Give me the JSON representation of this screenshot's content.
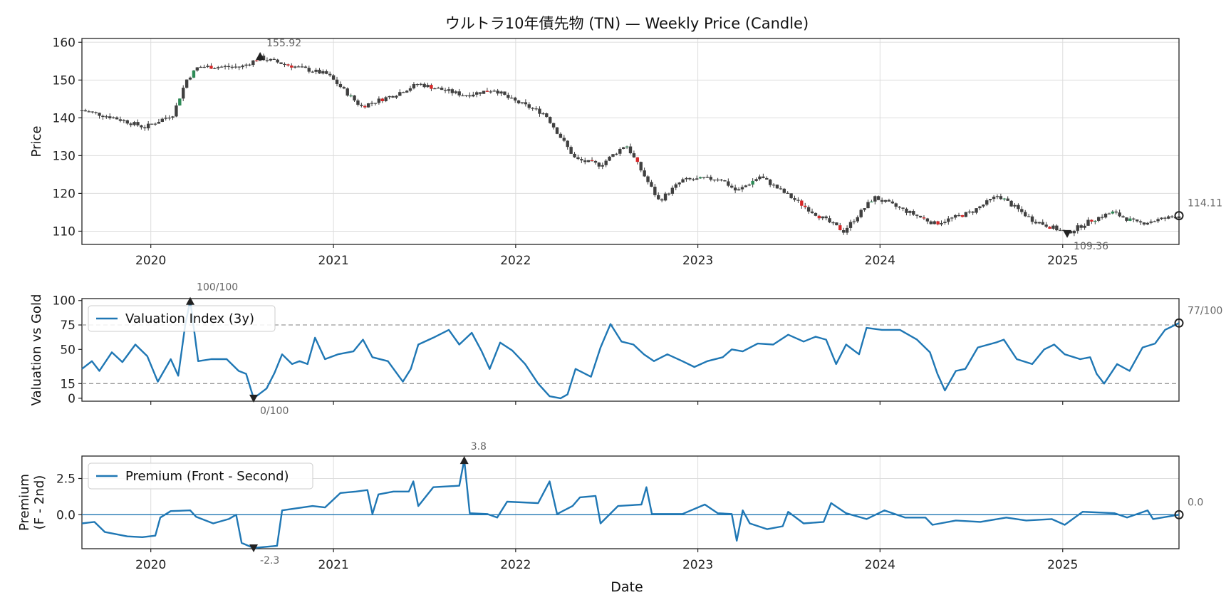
{
  "figure": {
    "title": "ウルトラ10年債先物 (TN) — Weekly Price (Candle)",
    "xlabel": "Date"
  },
  "colors": {
    "up": "#2e8b57",
    "down": "#d62728",
    "wick": "#3a3a3a",
    "line": "#1f77b4",
    "grid": "#dddddd",
    "ref": "#999999"
  },
  "chart_data": [
    {
      "type": "candlestick",
      "ylabel": "Price",
      "ylim": [
        106.5,
        161
      ],
      "yticks": [
        110,
        120,
        130,
        140,
        150,
        160
      ],
      "xlim": [
        "2019-08-16",
        "2025-08-22"
      ],
      "xticks": [
        "2020",
        "2021",
        "2022",
        "2023",
        "2024",
        "2025"
      ],
      "grid": true,
      "anchors": [
        [
          "2019-08-16",
          142
        ],
        [
          "2019-10-20",
          140
        ],
        [
          "2019-12-20",
          137.5
        ],
        [
          "2020-02-15",
          141
        ],
        [
          "2020-03-12",
          150
        ],
        [
          "2020-04-05",
          153.5
        ],
        [
          "2020-07-01",
          153.5
        ],
        [
          "2020-08-07",
          155.9
        ],
        [
          "2020-10-01",
          154
        ],
        [
          "2020-12-20",
          151.5
        ],
        [
          "2021-02-25",
          143
        ],
        [
          "2021-05-01",
          146
        ],
        [
          "2021-06-20",
          149
        ],
        [
          "2021-09-20",
          146
        ],
        [
          "2021-11-20",
          147.5
        ],
        [
          "2021-12-20",
          145
        ],
        [
          "2022-03-01",
          141
        ],
        [
          "2022-05-01",
          129
        ],
        [
          "2022-06-20",
          127.5
        ],
        [
          "2022-08-10",
          133
        ],
        [
          "2022-10-15",
          118
        ],
        [
          "2022-12-01",
          123.5
        ],
        [
          "2023-02-15",
          124
        ],
        [
          "2023-03-20",
          120.5
        ],
        [
          "2023-05-05",
          124.5
        ],
        [
          "2023-06-25",
          120
        ],
        [
          "2023-08-20",
          115
        ],
        [
          "2023-10-20",
          110
        ],
        [
          "2023-12-20",
          119
        ],
        [
          "2024-04-20",
          112
        ],
        [
          "2024-07-01",
          115
        ],
        [
          "2024-08-25",
          119.5
        ],
        [
          "2024-11-01",
          113
        ],
        [
          "2025-01-10",
          109.5
        ],
        [
          "2025-03-01",
          113
        ],
        [
          "2025-04-10",
          115
        ],
        [
          "2025-06-01",
          112
        ],
        [
          "2025-08-22",
          114.1
        ]
      ],
      "annotations": {
        "max": {
          "date": "2020-08-07",
          "value": 155.92,
          "label": "155.92"
        },
        "min": {
          "date": "2025-01-10",
          "value": 109.36,
          "label": "109.36"
        },
        "last": {
          "date": "2025-08-22",
          "value": 114.11,
          "label": "114.11"
        }
      }
    },
    {
      "type": "line",
      "ylabel": "Valuation vs Gold",
      "ylim": [
        -3,
        102
      ],
      "yticks": [
        0,
        15,
        50,
        75,
        100
      ],
      "ref_lines": [
        75,
        15
      ],
      "legend": "Valuation Index (3y)",
      "legend_position": "top-left",
      "anchors": [
        [
          "2019-08-16",
          30
        ],
        [
          "2019-09-05",
          38
        ],
        [
          "2019-09-20",
          28
        ],
        [
          "2019-10-15",
          47
        ],
        [
          "2019-11-05",
          37
        ],
        [
          "2019-12-01",
          55
        ],
        [
          "2019-12-25",
          43
        ],
        [
          "2020-01-15",
          17
        ],
        [
          "2020-02-10",
          40
        ],
        [
          "2020-02-25",
          23
        ],
        [
          "2020-03-10",
          75
        ],
        [
          "2020-03-20",
          100
        ],
        [
          "2020-04-05",
          38
        ],
        [
          "2020-05-01",
          40
        ],
        [
          "2020-06-01",
          40
        ],
        [
          "2020-06-25",
          28
        ],
        [
          "2020-07-10",
          25
        ],
        [
          "2020-07-25",
          0
        ],
        [
          "2020-08-20",
          10
        ],
        [
          "2020-09-05",
          26
        ],
        [
          "2020-09-20",
          45
        ],
        [
          "2020-10-10",
          35
        ],
        [
          "2020-10-25",
          38
        ],
        [
          "2020-11-10",
          35
        ],
        [
          "2020-11-25",
          62
        ],
        [
          "2020-12-15",
          40
        ],
        [
          "2021-01-10",
          45
        ],
        [
          "2021-02-10",
          48
        ],
        [
          "2021-03-01",
          60
        ],
        [
          "2021-03-20",
          42
        ],
        [
          "2021-04-20",
          38
        ],
        [
          "2021-05-20",
          17
        ],
        [
          "2021-06-05",
          30
        ],
        [
          "2021-06-20",
          55
        ],
        [
          "2021-07-20",
          62
        ],
        [
          "2021-08-20",
          70
        ],
        [
          "2021-09-10",
          55
        ],
        [
          "2021-10-05",
          67
        ],
        [
          "2021-10-25",
          48
        ],
        [
          "2021-11-10",
          30
        ],
        [
          "2021-12-01",
          57
        ],
        [
          "2021-12-25",
          49
        ],
        [
          "2022-01-20",
          35
        ],
        [
          "2022-02-15",
          15
        ],
        [
          "2022-03-10",
          2
        ],
        [
          "2022-04-01",
          0
        ],
        [
          "2022-04-15",
          4
        ],
        [
          "2022-05-01",
          30
        ],
        [
          "2022-06-01",
          22
        ],
        [
          "2022-06-20",
          52
        ],
        [
          "2022-07-10",
          76
        ],
        [
          "2022-08-01",
          58
        ],
        [
          "2022-08-25",
          55
        ],
        [
          "2022-09-15",
          45
        ],
        [
          "2022-10-05",
          38
        ],
        [
          "2022-11-01",
          45
        ],
        [
          "2022-12-01",
          38
        ],
        [
          "2022-12-25",
          32
        ],
        [
          "2023-01-20",
          38
        ],
        [
          "2023-02-20",
          42
        ],
        [
          "2023-03-10",
          50
        ],
        [
          "2023-04-01",
          48
        ],
        [
          "2023-05-01",
          56
        ],
        [
          "2023-06-01",
          55
        ],
        [
          "2023-07-01",
          65
        ],
        [
          "2023-08-01",
          58
        ],
        [
          "2023-08-25",
          63
        ],
        [
          "2023-09-15",
          60
        ],
        [
          "2023-10-05",
          35
        ],
        [
          "2023-10-25",
          55
        ],
        [
          "2023-11-20",
          45
        ],
        [
          "2023-12-05",
          72
        ],
        [
          "2024-01-05",
          70
        ],
        [
          "2024-02-10",
          70
        ],
        [
          "2024-03-15",
          60
        ],
        [
          "2024-04-10",
          47
        ],
        [
          "2024-04-25",
          25
        ],
        [
          "2024-05-10",
          8
        ],
        [
          "2024-06-01",
          28
        ],
        [
          "2024-06-20",
          30
        ],
        [
          "2024-07-15",
          52
        ],
        [
          "2024-08-20",
          57
        ],
        [
          "2024-09-05",
          60
        ],
        [
          "2024-10-01",
          40
        ],
        [
          "2024-11-01",
          35
        ],
        [
          "2024-11-25",
          50
        ],
        [
          "2024-12-15",
          55
        ],
        [
          "2025-01-05",
          45
        ],
        [
          "2025-02-05",
          40
        ],
        [
          "2025-02-25",
          42
        ],
        [
          "2025-03-10",
          25
        ],
        [
          "2025-03-25",
          15
        ],
        [
          "2025-04-20",
          35
        ],
        [
          "2025-05-15",
          28
        ],
        [
          "2025-06-10",
          52
        ],
        [
          "2025-07-05",
          56
        ],
        [
          "2025-07-25",
          70
        ],
        [
          "2025-08-22",
          77
        ]
      ],
      "annotations": {
        "max": {
          "date": "2020-03-20",
          "value": 100,
          "label": "100/100"
        },
        "min": {
          "date": "2020-07-25",
          "value": 0,
          "label": "0/100"
        },
        "last": {
          "date": "2025-08-22",
          "value": 77,
          "label": "77/100"
        }
      }
    },
    {
      "type": "line",
      "ylabel": "Premium\n(F - 2nd)",
      "ylim": [
        -2.35,
        4.05
      ],
      "yticks": [
        -0.0,
        2.5
      ],
      "ytick_labels": [
        "0.0",
        "2.5"
      ],
      "ref_lines": [
        0
      ],
      "legend": "Premium (Front - Second)",
      "legend_position": "top-left",
      "anchors": [
        [
          "2019-08-16",
          -0.6
        ],
        [
          "2019-09-10",
          -0.5
        ],
        [
          "2019-10-01",
          -1.2
        ],
        [
          "2019-11-15",
          -1.5
        ],
        [
          "2019-12-15",
          -1.55
        ],
        [
          "2020-01-10",
          -1.45
        ],
        [
          "2020-01-20",
          -0.2
        ],
        [
          "2020-02-10",
          0.25
        ],
        [
          "2020-03-20",
          0.3
        ],
        [
          "2020-04-01",
          -0.15
        ],
        [
          "2020-05-05",
          -0.6
        ],
        [
          "2020-06-05",
          -0.3
        ],
        [
          "2020-06-20",
          0.0
        ],
        [
          "2020-07-01",
          -1.95
        ],
        [
          "2020-07-25",
          -2.3
        ],
        [
          "2020-09-10",
          -2.15
        ],
        [
          "2020-09-20",
          0.3
        ],
        [
          "2020-11-20",
          0.6
        ],
        [
          "2020-12-15",
          0.5
        ],
        [
          "2021-01-15",
          1.5
        ],
        [
          "2021-02-15",
          1.6
        ],
        [
          "2021-03-10",
          1.7
        ],
        [
          "2021-03-20",
          0.05
        ],
        [
          "2021-04-01",
          1.4
        ],
        [
          "2021-05-01",
          1.6
        ],
        [
          "2021-06-01",
          1.6
        ],
        [
          "2021-06-10",
          2.3
        ],
        [
          "2021-06-20",
          0.6
        ],
        [
          "2021-07-20",
          1.9
        ],
        [
          "2021-09-10",
          2.0
        ],
        [
          "2021-09-20",
          3.8
        ],
        [
          "2021-10-01",
          0.1
        ],
        [
          "2021-11-05",
          0.05
        ],
        [
          "2021-11-25",
          -0.2
        ],
        [
          "2021-12-15",
          0.9
        ],
        [
          "2022-02-15",
          0.8
        ],
        [
          "2022-03-10",
          2.3
        ],
        [
          "2022-03-25",
          0.05
        ],
        [
          "2022-04-25",
          0.6
        ],
        [
          "2022-05-10",
          1.2
        ],
        [
          "2022-06-10",
          1.3
        ],
        [
          "2022-06-20",
          -0.6
        ],
        [
          "2022-07-25",
          0.6
        ],
        [
          "2022-09-10",
          0.7
        ],
        [
          "2022-09-20",
          1.9
        ],
        [
          "2022-10-01",
          0.05
        ],
        [
          "2022-12-01",
          0.05
        ],
        [
          "2023-01-15",
          0.7
        ],
        [
          "2023-02-10",
          0.1
        ],
        [
          "2023-03-10",
          0.05
        ],
        [
          "2023-03-20",
          -1.8
        ],
        [
          "2023-04-01",
          0.3
        ],
        [
          "2023-04-15",
          -0.6
        ],
        [
          "2023-05-20",
          -1.0
        ],
        [
          "2023-06-20",
          -0.8
        ],
        [
          "2023-07-01",
          0.2
        ],
        [
          "2023-08-01",
          -0.6
        ],
        [
          "2023-09-10",
          -0.5
        ],
        [
          "2023-09-25",
          0.8
        ],
        [
          "2023-10-25",
          0.1
        ],
        [
          "2023-12-05",
          -0.3
        ],
        [
          "2024-01-10",
          0.3
        ],
        [
          "2024-02-20",
          -0.2
        ],
        [
          "2024-04-01",
          -0.2
        ],
        [
          "2024-04-15",
          -0.7
        ],
        [
          "2024-06-01",
          -0.4
        ],
        [
          "2024-07-20",
          -0.5
        ],
        [
          "2024-09-10",
          -0.2
        ],
        [
          "2024-10-20",
          -0.4
        ],
        [
          "2024-12-10",
          -0.3
        ],
        [
          "2025-01-05",
          -0.7
        ],
        [
          "2025-02-10",
          0.2
        ],
        [
          "2025-04-15",
          0.1
        ],
        [
          "2025-05-10",
          -0.2
        ],
        [
          "2025-06-20",
          0.3
        ],
        [
          "2025-07-01",
          -0.3
        ],
        [
          "2025-08-22",
          0.0
        ]
      ],
      "annotations": {
        "max": {
          "date": "2021-09-20",
          "value": 3.8,
          "label": "3.8"
        },
        "min": {
          "date": "2020-07-25",
          "value": -2.3,
          "label": "-2.3"
        },
        "last": {
          "date": "2025-08-22",
          "value": 0.0,
          "label": "0.0"
        }
      }
    }
  ]
}
